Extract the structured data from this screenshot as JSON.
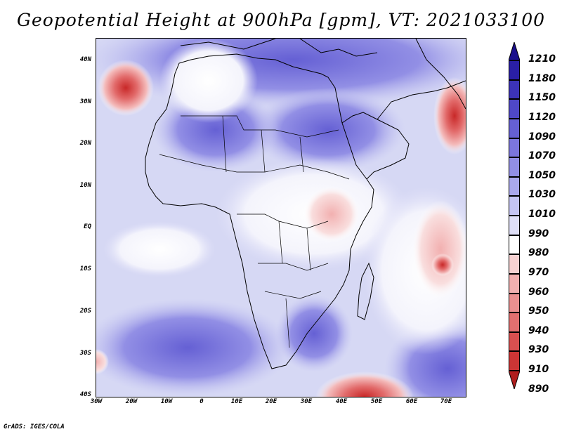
{
  "title": "Geopotential Height at 900hPa [gpm], VT: 2021033100",
  "credit": "GrADS: IGES/COLA",
  "axes": {
    "y_labels": [
      "40N",
      "30N",
      "20N",
      "10N",
      "EQ",
      "10S",
      "20S",
      "30S",
      "40S"
    ],
    "x_labels": [
      "30W",
      "20W",
      "10W",
      "0",
      "10E",
      "20E",
      "30E",
      "40E",
      "50E",
      "60E",
      "70E"
    ]
  },
  "colorbar": {
    "levels": [
      "1210",
      "1180",
      "1150",
      "1120",
      "1090",
      "1070",
      "1050",
      "1030",
      "1010",
      "990",
      "980",
      "970",
      "960",
      "950",
      "940",
      "930",
      "910",
      "890"
    ],
    "colors": [
      "#1a0f8c",
      "#2a1fa6",
      "#3c33b8",
      "#4f48c8",
      "#6560d4",
      "#7b76dd",
      "#928fe5",
      "#aaa8ec",
      "#c5c5f3",
      "#e0e0f8",
      "#ffffff",
      "#f7d2d2",
      "#f2b0b0",
      "#eb9090",
      "#e27070",
      "#d85050",
      "#cc3535",
      "#b01e1e"
    ]
  },
  "icons": {
    "top_arrow": "arrow-up-triangle",
    "bottom_arrow": "arrow-down-triangle"
  }
}
